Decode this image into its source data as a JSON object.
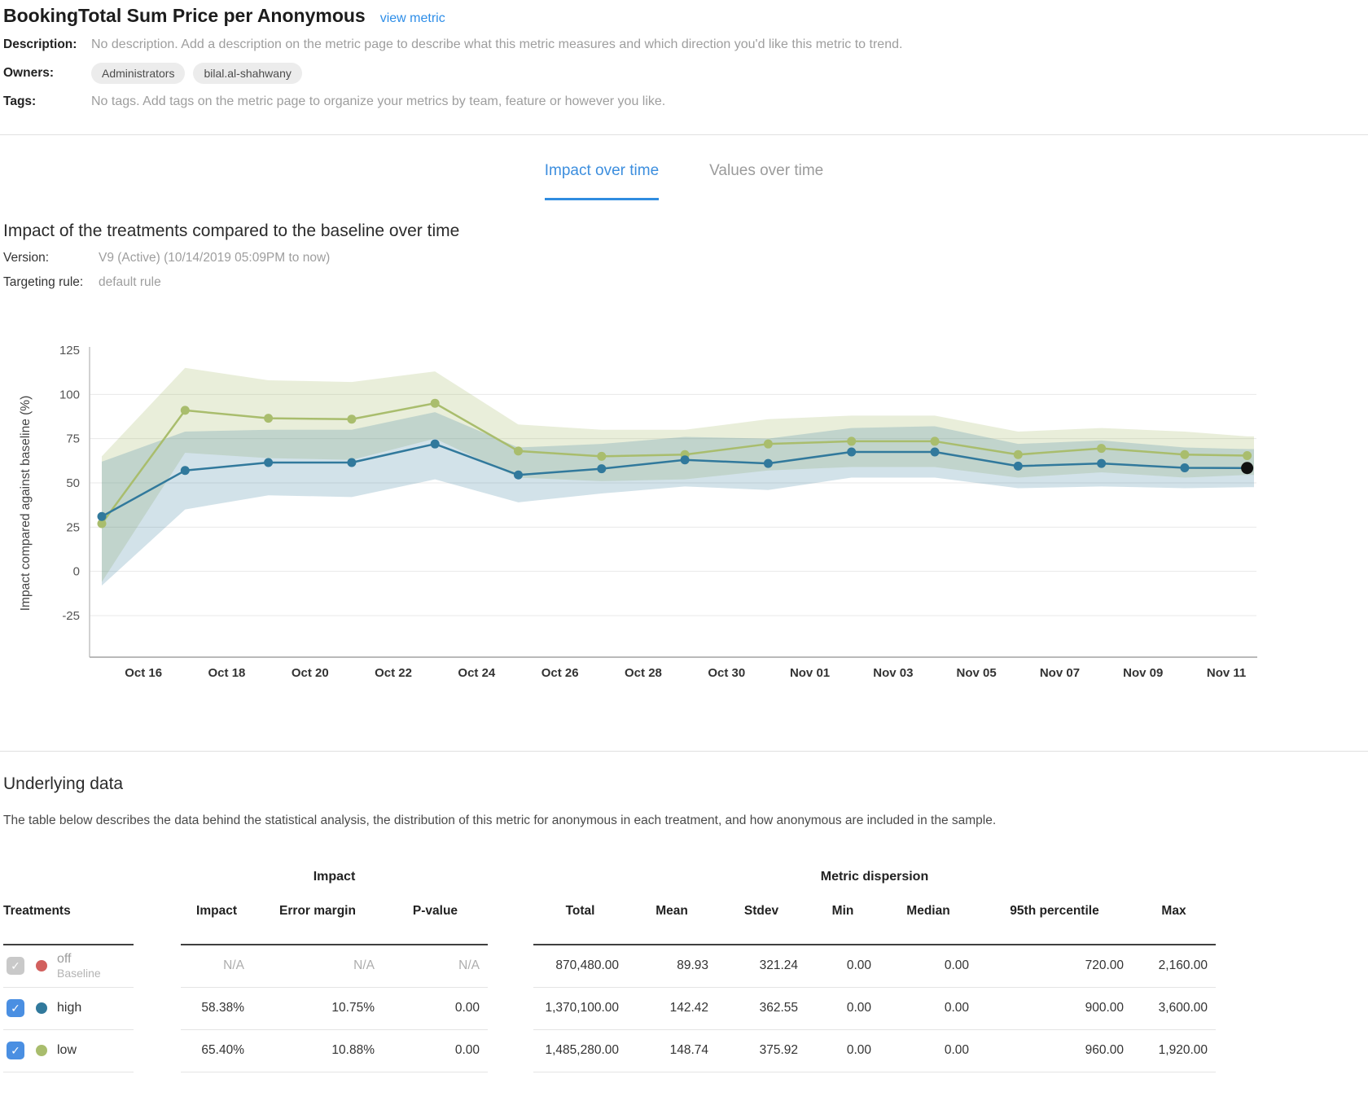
{
  "header": {
    "title": "BookingTotal Sum Price per Anonymous",
    "link_label": "view metric"
  },
  "meta": {
    "description_label": "Description:",
    "description": "No description. Add a description on the metric page to describe what this metric measures and which direction you'd like this metric to trend.",
    "owners_label": "Owners:",
    "owners": [
      "Administrators",
      "bilal.al-shahwany"
    ],
    "tags_label": "Tags:",
    "tags_text": "No tags. Add tags on the metric page to organize your metrics by team, feature or however you like."
  },
  "tabs": [
    {
      "label": "Impact over time",
      "active": true
    },
    {
      "label": "Values over time",
      "active": false
    }
  ],
  "section": {
    "title": "Impact of the treatments compared to the baseline over time",
    "version_label": "Version:",
    "version": "V9 (Active) (10/14/2019 05:09PM to now)",
    "targeting_label": "Targeting rule:",
    "targeting": "default rule"
  },
  "chart_data": {
    "type": "line",
    "title": "Impact of the treatments compared to the baseline over time",
    "ylabel": "Impact compared against baseline (%)",
    "ylim": [
      -25,
      125
    ],
    "yticks": [
      125,
      100,
      75,
      50,
      25,
      0,
      -25
    ],
    "grid": true,
    "x_axis": [
      {
        "label": "Oct 16",
        "day": 1
      },
      {
        "label": "Oct 18",
        "day": 3
      },
      {
        "label": "Oct 20",
        "day": 5
      },
      {
        "label": "Oct 22",
        "day": 7
      },
      {
        "label": "Oct 24",
        "day": 9
      },
      {
        "label": "Oct 26",
        "day": 11
      },
      {
        "label": "Oct 28",
        "day": 13
      },
      {
        "label": "Oct 30",
        "day": 15
      },
      {
        "label": "Nov 01",
        "day": 17
      },
      {
        "label": "Nov 03",
        "day": 19
      },
      {
        "label": "Nov 05",
        "day": 21
      },
      {
        "label": "Nov 07",
        "day": 23
      },
      {
        "label": "Nov 09",
        "day": 25
      },
      {
        "label": "Nov 11",
        "day": 27
      }
    ],
    "point_dates": [
      "Oct 15",
      "Oct 17",
      "Oct 19",
      "Oct 21",
      "Oct 23",
      "Oct 25",
      "Oct 27",
      "Oct 29",
      "Oct 31",
      "Nov 02",
      "Nov 04",
      "Nov 06",
      "Nov 08",
      "Nov 10",
      "Nov 11"
    ],
    "point_days": [
      0,
      2,
      4,
      6,
      8,
      10,
      12,
      14,
      16,
      18,
      20,
      22,
      24,
      26,
      27.5
    ],
    "series": [
      {
        "name": "low",
        "color": "#a9bd6d",
        "band_opacity": 0.25,
        "values": [
          27,
          91,
          86.5,
          86,
          95,
          68,
          65,
          66,
          72,
          73.5,
          73.5,
          66,
          69.5,
          66,
          65.4
        ],
        "upper": [
          65,
          115,
          108,
          107,
          113,
          83,
          80,
          80,
          86,
          88,
          88,
          79,
          81,
          79,
          76.3
        ],
        "lower": [
          -6,
          67,
          64,
          63,
          75,
          53,
          51,
          52,
          57,
          59,
          59,
          53,
          56,
          53,
          54.5
        ]
      },
      {
        "name": "high",
        "color": "#31799c",
        "band_opacity": 0.22,
        "values": [
          31,
          57,
          61.5,
          61.5,
          72,
          54.5,
          58,
          63,
          61,
          67.5,
          67.5,
          59.5,
          61,
          58.5,
          58.4
        ],
        "upper": [
          62,
          79,
          80,
          80,
          90,
          70,
          72,
          76,
          75,
          81,
          82,
          72,
          74,
          70,
          69.1
        ],
        "lower": [
          -8,
          35,
          43,
          42,
          52,
          39,
          44,
          48,
          46,
          53,
          53,
          47,
          48,
          47,
          47.6
        ]
      }
    ],
    "current_point": {
      "series": "high",
      "date": "Nov 11",
      "value": 58.4,
      "color": "#111111"
    }
  },
  "underlying": {
    "title": "Underlying data",
    "description": "The table below describes the data behind the statistical analysis, the distribution of this metric for anonymous in each treatment, and how anonymous are included in the sample.",
    "table": {
      "treatments_header": "Treatments",
      "group_headers": [
        "Impact",
        "Metric dispersion"
      ],
      "impact_columns": [
        "Impact",
        "Error margin",
        "P-value"
      ],
      "dispersion_columns": [
        "Total",
        "Mean",
        "Stdev",
        "Min",
        "Median",
        "95th percentile",
        "Max"
      ],
      "rows": [
        {
          "name": "off",
          "sub": "Baseline",
          "dot_color": "#d2605e",
          "checked": true,
          "muted": true,
          "impact": [
            "N/A",
            "N/A",
            "N/A"
          ],
          "dispersion": [
            "870,480.00",
            "89.93",
            "321.24",
            "0.00",
            "0.00",
            "720.00",
            "2,160.00"
          ]
        },
        {
          "name": "high",
          "sub": "",
          "dot_color": "#31799c",
          "checked": true,
          "muted": false,
          "impact": [
            "58.38%",
            "10.75%",
            "0.00"
          ],
          "dispersion": [
            "1,370,100.00",
            "142.42",
            "362.55",
            "0.00",
            "0.00",
            "900.00",
            "3,600.00"
          ]
        },
        {
          "name": "low",
          "sub": "",
          "dot_color": "#a9bd6d",
          "checked": true,
          "muted": false,
          "impact": [
            "65.40%",
            "10.88%",
            "0.00"
          ],
          "dispersion": [
            "1,485,280.00",
            "148.74",
            "375.92",
            "0.00",
            "0.00",
            "960.00",
            "1,920.00"
          ]
        }
      ]
    }
  },
  "colors": {
    "accent_blue": "#2e8ee8",
    "tab_active": "#3c8ede",
    "high_line": "#31799c",
    "low_line": "#a9bd6d",
    "baseline_dot": "#d2605e",
    "checkbox_blue": "#4a8fe2",
    "current_point": "#111111"
  }
}
